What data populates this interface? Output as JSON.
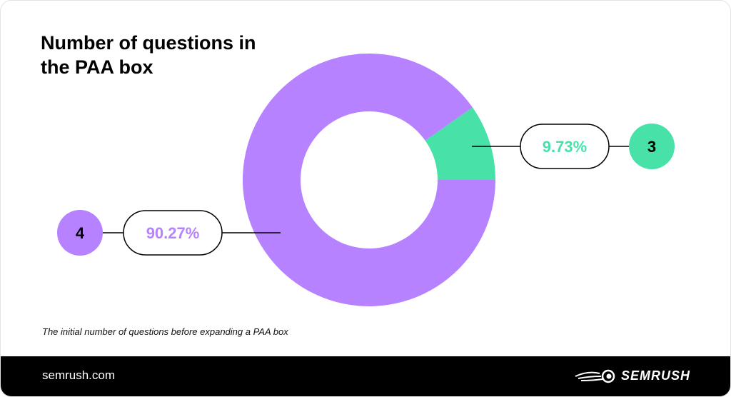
{
  "title": "Number of questions in the PAA box",
  "caption": "The initial number of questions before expanding a PAA box",
  "footer": {
    "site": "semrush.com",
    "brand": "SEMRUSH"
  },
  "chart_data": {
    "type": "pie",
    "variant": "donut",
    "title": "Number of questions in the PAA box",
    "slices": [
      {
        "category": "3",
        "value": 9.73,
        "label": "9.73%",
        "color": "#48e2a9"
      },
      {
        "category": "4",
        "value": 90.27,
        "label": "90.27%",
        "color": "#b682ff"
      }
    ]
  }
}
